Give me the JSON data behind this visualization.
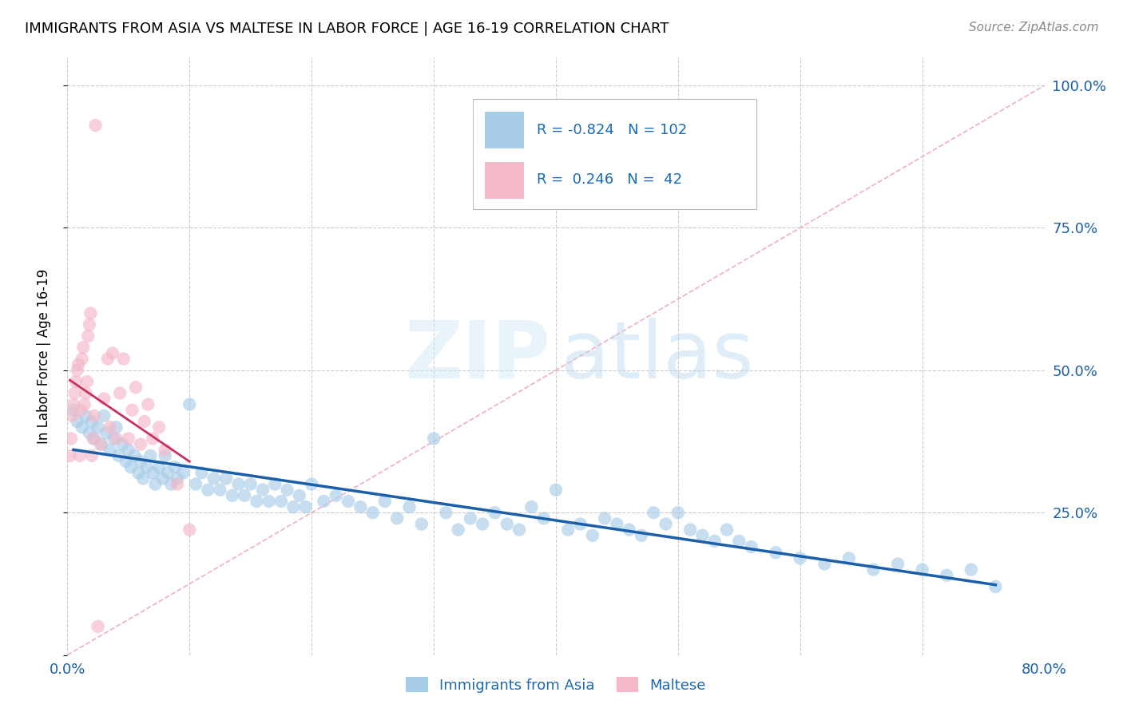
{
  "title": "IMMIGRANTS FROM ASIA VS MALTESE IN LABOR FORCE | AGE 16-19 CORRELATION CHART",
  "source": "Source: ZipAtlas.com",
  "ylabel": "In Labor Force | Age 16-19",
  "xmin": 0.0,
  "xmax": 0.8,
  "ymin": 0.0,
  "ymax": 1.05,
  "yticks": [
    0.0,
    0.25,
    0.5,
    0.75,
    1.0
  ],
  "ytick_labels": [
    "",
    "25.0%",
    "50.0%",
    "75.0%",
    "100.0%"
  ],
  "xticks": [
    0.0,
    0.1,
    0.2,
    0.3,
    0.4,
    0.5,
    0.6,
    0.7,
    0.8
  ],
  "xtick_labels": [
    "0.0%",
    "",
    "",
    "",
    "",
    "",
    "",
    "",
    "80.0%"
  ],
  "blue_R": -0.824,
  "blue_N": 102,
  "pink_R": 0.246,
  "pink_N": 42,
  "blue_color": "#a8cde8",
  "pink_color": "#f4b8c8",
  "blue_line_color": "#1a5fa8",
  "pink_line_color": "#c83060",
  "diagonal_color": "#e8b8c8",
  "legend_text_color": "#1a6ab5",
  "blue_scatter_x": [
    0.005,
    0.008,
    0.012,
    0.015,
    0.018,
    0.02,
    0.022,
    0.025,
    0.028,
    0.03,
    0.032,
    0.035,
    0.038,
    0.04,
    0.042,
    0.045,
    0.048,
    0.05,
    0.052,
    0.055,
    0.058,
    0.06,
    0.062,
    0.065,
    0.068,
    0.07,
    0.072,
    0.075,
    0.078,
    0.08,
    0.082,
    0.085,
    0.088,
    0.09,
    0.095,
    0.1,
    0.105,
    0.11,
    0.115,
    0.12,
    0.125,
    0.13,
    0.135,
    0.14,
    0.145,
    0.15,
    0.155,
    0.16,
    0.165,
    0.17,
    0.175,
    0.18,
    0.185,
    0.19,
    0.195,
    0.2,
    0.21,
    0.22,
    0.23,
    0.24,
    0.25,
    0.26,
    0.27,
    0.28,
    0.29,
    0.3,
    0.31,
    0.32,
    0.33,
    0.34,
    0.35,
    0.36,
    0.37,
    0.38,
    0.39,
    0.4,
    0.41,
    0.42,
    0.43,
    0.44,
    0.45,
    0.46,
    0.47,
    0.48,
    0.49,
    0.5,
    0.51,
    0.52,
    0.53,
    0.54,
    0.55,
    0.56,
    0.58,
    0.6,
    0.62,
    0.64,
    0.66,
    0.68,
    0.7,
    0.72,
    0.74,
    0.76
  ],
  "blue_scatter_y": [
    0.43,
    0.41,
    0.4,
    0.42,
    0.39,
    0.41,
    0.38,
    0.4,
    0.37,
    0.42,
    0.39,
    0.36,
    0.38,
    0.4,
    0.35,
    0.37,
    0.34,
    0.36,
    0.33,
    0.35,
    0.32,
    0.34,
    0.31,
    0.33,
    0.35,
    0.32,
    0.3,
    0.33,
    0.31,
    0.35,
    0.32,
    0.3,
    0.33,
    0.31,
    0.32,
    0.44,
    0.3,
    0.32,
    0.29,
    0.31,
    0.29,
    0.31,
    0.28,
    0.3,
    0.28,
    0.3,
    0.27,
    0.29,
    0.27,
    0.3,
    0.27,
    0.29,
    0.26,
    0.28,
    0.26,
    0.3,
    0.27,
    0.28,
    0.27,
    0.26,
    0.25,
    0.27,
    0.24,
    0.26,
    0.23,
    0.38,
    0.25,
    0.22,
    0.24,
    0.23,
    0.25,
    0.23,
    0.22,
    0.26,
    0.24,
    0.29,
    0.22,
    0.23,
    0.21,
    0.24,
    0.23,
    0.22,
    0.21,
    0.25,
    0.23,
    0.25,
    0.22,
    0.21,
    0.2,
    0.22,
    0.2,
    0.19,
    0.18,
    0.17,
    0.16,
    0.17,
    0.15,
    0.16,
    0.15,
    0.14,
    0.15,
    0.12
  ],
  "pink_scatter_x": [
    0.002,
    0.003,
    0.004,
    0.005,
    0.006,
    0.007,
    0.008,
    0.009,
    0.01,
    0.011,
    0.012,
    0.013,
    0.014,
    0.015,
    0.016,
    0.017,
    0.018,
    0.019,
    0.02,
    0.021,
    0.022,
    0.023,
    0.025,
    0.027,
    0.03,
    0.033,
    0.035,
    0.037,
    0.04,
    0.043,
    0.046,
    0.05,
    0.053,
    0.056,
    0.06,
    0.063,
    0.066,
    0.07,
    0.075,
    0.08,
    0.09,
    0.1
  ],
  "pink_scatter_y": [
    0.35,
    0.38,
    0.42,
    0.44,
    0.46,
    0.48,
    0.5,
    0.51,
    0.35,
    0.43,
    0.52,
    0.54,
    0.44,
    0.46,
    0.48,
    0.56,
    0.58,
    0.6,
    0.35,
    0.38,
    0.42,
    0.93,
    0.05,
    0.37,
    0.45,
    0.52,
    0.4,
    0.53,
    0.38,
    0.46,
    0.52,
    0.38,
    0.43,
    0.47,
    0.37,
    0.41,
    0.44,
    0.38,
    0.4,
    0.36,
    0.3,
    0.22
  ]
}
